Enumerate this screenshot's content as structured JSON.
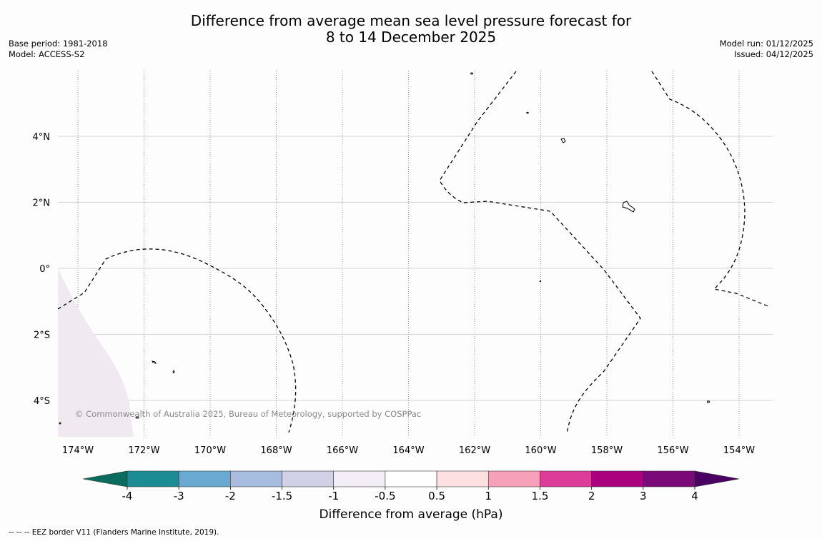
{
  "header": {
    "title_line1": "Difference from average mean sea level pressure forecast for",
    "title_line2": "8 to 14 December 2025",
    "base_period": "Base period: 1981-2018",
    "model": "Model: ACCESS-S2",
    "model_run": "Model run: 01/12/2025",
    "issued": "Issued: 04/12/2025"
  },
  "map": {
    "lat_labels": [
      "4°N",
      "2°N",
      "0°",
      "2°S",
      "4°S"
    ],
    "lat_values": [
      4,
      2,
      0,
      -2,
      -4
    ],
    "lon_labels": [
      "174°W",
      "172°W",
      "170°W",
      "168°W",
      "166°W",
      "164°W",
      "162°W",
      "160°W",
      "158°W",
      "156°W",
      "154°W"
    ],
    "lon_values": [
      -174,
      -172,
      -170,
      -168,
      -166,
      -164,
      -162,
      -160,
      -158,
      -156,
      -154
    ],
    "extent": {
      "lon_min": -174.6,
      "lon_max": -153.0,
      "lat_min": -5.1,
      "lat_max": 5.8
    },
    "copyright": "© Commonwealth of Australia 2025, Bureau of Meteorology, supported by COSPPac",
    "shaded_region_category": "-1 to -0.5"
  },
  "colorbar": {
    "label": "Difference from average (hPa)",
    "ticks": [
      "-4",
      "-3",
      "-2",
      "-1.5",
      "-1",
      "-0.5",
      "0.5",
      "1",
      "1.5",
      "2",
      "3",
      "4"
    ],
    "colors": [
      "#1a8c92",
      "#6aaad2",
      "#a7bcdf",
      "#d0d0e6",
      "#f3eef5",
      "#ffffff",
      "#fde0e2",
      "#f6a0ba",
      "#de3c99",
      "#ab007e",
      "#7b0a79"
    ],
    "under_color": "#0a6b5e",
    "over_color": "#4b0064"
  },
  "footnote": "--  --  -- EEZ border V11 (Flanders Marine Institute, 2019)."
}
